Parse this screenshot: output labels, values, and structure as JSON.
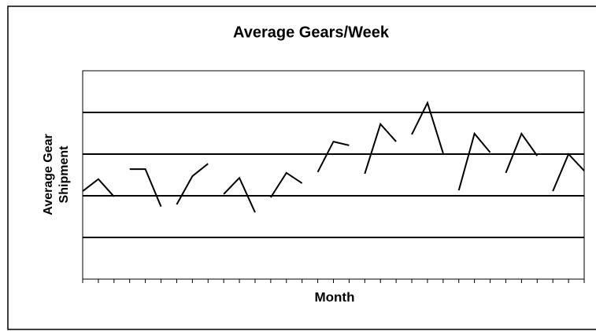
{
  "chart_data": {
    "type": "line",
    "title": "Average Gears/Week",
    "xlabel": "Month",
    "ylabel": [
      "Average Gear",
      "Shipment"
    ],
    "categories": [
      null,
      null,
      null,
      null,
      null,
      null,
      null,
      null,
      null,
      null,
      null,
      null,
      null,
      null,
      null,
      null,
      null,
      null,
      null,
      null,
      null,
      null,
      null,
      null,
      null,
      null,
      null,
      null,
      null,
      null,
      null,
      null,
      null
    ],
    "ylim": [
      0,
      5
    ],
    "yticks": [
      1,
      2,
      3,
      4
    ],
    "grid": true,
    "color": "#000000",
    "series": [
      {
        "values": [
          2.11,
          2.4,
          1.98,
          null,
          null,
          null,
          null,
          null,
          null,
          null,
          null,
          null,
          null,
          null,
          null,
          null,
          null,
          null,
          null,
          null,
          null,
          null,
          null,
          null,
          null,
          null,
          null,
          null,
          null,
          null,
          null,
          null,
          null
        ]
      },
      {
        "values": [
          null,
          null,
          null,
          2.64,
          2.64,
          1.74,
          null,
          null,
          null,
          null,
          null,
          null,
          null,
          null,
          null,
          null,
          null,
          null,
          null,
          null,
          null,
          null,
          null,
          null,
          null,
          null,
          null,
          null,
          null,
          null,
          null,
          null,
          null
        ]
      },
      {
        "values": [
          null,
          null,
          null,
          null,
          null,
          null,
          1.79,
          2.47,
          2.77,
          null,
          null,
          null,
          null,
          null,
          null,
          null,
          null,
          null,
          null,
          null,
          null,
          null,
          null,
          null,
          null,
          null,
          null,
          null,
          null,
          null,
          null,
          null,
          null
        ]
      },
      {
        "values": [
          null,
          null,
          null,
          null,
          null,
          null,
          null,
          null,
          null,
          2.04,
          2.43,
          1.6,
          null,
          null,
          null,
          null,
          null,
          null,
          null,
          null,
          null,
          null,
          null,
          null,
          null,
          null,
          null,
          null,
          null,
          null,
          null,
          null,
          null
        ]
      },
      {
        "values": [
          null,
          null,
          null,
          null,
          null,
          null,
          null,
          null,
          null,
          null,
          null,
          null,
          1.96,
          2.55,
          2.3,
          null,
          null,
          null,
          null,
          null,
          null,
          null,
          null,
          null,
          null,
          null,
          null,
          null,
          null,
          null,
          null,
          null,
          null
        ]
      },
      {
        "values": [
          null,
          null,
          null,
          null,
          null,
          null,
          null,
          null,
          null,
          null,
          null,
          null,
          null,
          null,
          null,
          2.57,
          3.3,
          3.21,
          null,
          null,
          null,
          null,
          null,
          null,
          null,
          null,
          null,
          null,
          null,
          null,
          null,
          null,
          null
        ]
      },
      {
        "values": [
          null,
          null,
          null,
          null,
          null,
          null,
          null,
          null,
          null,
          null,
          null,
          null,
          null,
          null,
          null,
          null,
          null,
          null,
          2.53,
          3.72,
          3.3,
          null,
          null,
          null,
          null,
          null,
          null,
          null,
          null,
          null,
          null,
          null,
          null
        ]
      },
      {
        "values": [
          null,
          null,
          null,
          null,
          null,
          null,
          null,
          null,
          null,
          null,
          null,
          null,
          null,
          null,
          null,
          null,
          null,
          null,
          null,
          null,
          null,
          3.47,
          4.23,
          3.02,
          null,
          null,
          null,
          null,
          null,
          null,
          null,
          null,
          null
        ]
      },
      {
        "values": [
          null,
          null,
          null,
          null,
          null,
          null,
          null,
          null,
          null,
          null,
          null,
          null,
          null,
          null,
          null,
          null,
          null,
          null,
          null,
          null,
          null,
          null,
          null,
          null,
          2.13,
          3.49,
          3.04,
          null,
          null,
          null,
          null,
          null,
          null
        ]
      },
      {
        "values": [
          null,
          null,
          null,
          null,
          null,
          null,
          null,
          null,
          null,
          null,
          null,
          null,
          null,
          null,
          null,
          null,
          null,
          null,
          null,
          null,
          null,
          null,
          null,
          null,
          null,
          null,
          null,
          2.55,
          3.49,
          2.96,
          null,
          null,
          null
        ]
      },
      {
        "values": [
          null,
          null,
          null,
          null,
          null,
          null,
          null,
          null,
          null,
          null,
          null,
          null,
          null,
          null,
          null,
          null,
          null,
          null,
          null,
          null,
          null,
          null,
          null,
          null,
          null,
          null,
          null,
          null,
          null,
          null,
          2.11,
          3.0,
          2.6
        ]
      }
    ]
  }
}
